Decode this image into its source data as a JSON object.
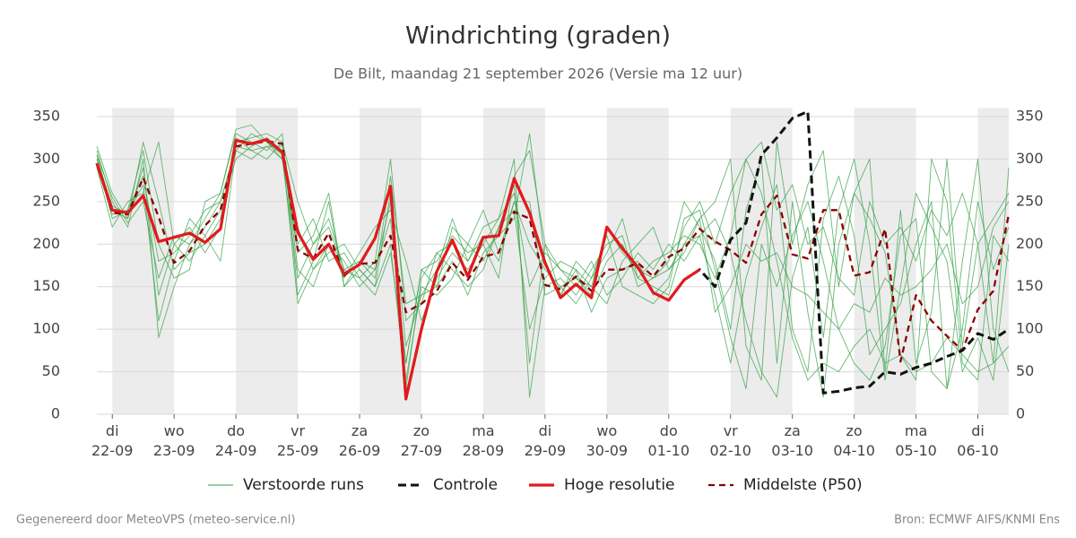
{
  "chart_data": {
    "type": "ensemble-line",
    "title": "Windrichting (graden)",
    "subtitle": "De Bilt, maandag 21 september 2026 (Versie ma 12 uur)",
    "footer_left": "Gegenereerd door MeteoVPS (meteo-service.nl)",
    "footer_right": "Bron: ECMWF AIFS/KNMI Ens",
    "x": [
      "2026-09-21T18:00",
      "2026-09-22T00:00",
      "2026-09-22T06:00",
      "2026-09-22T12:00",
      "2026-09-22T18:00",
      "2026-09-23T00:00",
      "2026-09-23T06:00",
      "2026-09-23T12:00",
      "2026-09-23T18:00",
      "2026-09-24T00:00",
      "2026-09-24T06:00",
      "2026-09-24T12:00",
      "2026-09-24T18:00",
      "2026-09-25T00:00",
      "2026-09-25T06:00",
      "2026-09-25T12:00",
      "2026-09-25T18:00",
      "2026-09-26T00:00",
      "2026-09-26T06:00",
      "2026-09-26T12:00",
      "2026-09-26T18:00",
      "2026-09-27T00:00",
      "2026-09-27T06:00",
      "2026-09-27T12:00",
      "2026-09-27T18:00",
      "2026-09-28T00:00",
      "2026-09-28T06:00",
      "2026-09-28T12:00",
      "2026-09-28T18:00",
      "2026-09-29T00:00",
      "2026-09-29T06:00",
      "2026-09-29T12:00",
      "2026-09-29T18:00",
      "2026-09-30T00:00",
      "2026-09-30T06:00",
      "2026-09-30T12:00",
      "2026-09-30T18:00",
      "2026-10-01T00:00",
      "2026-10-01T06:00",
      "2026-10-01T12:00",
      "2026-10-01T18:00",
      "2026-10-02T00:00",
      "2026-10-02T06:00",
      "2026-10-02T12:00",
      "2026-10-02T18:00",
      "2026-10-03T00:00",
      "2026-10-03T06:00",
      "2026-10-03T12:00",
      "2026-10-03T18:00",
      "2026-10-04T00:00",
      "2026-10-04T06:00",
      "2026-10-04T12:00",
      "2026-10-04T18:00",
      "2026-10-05T00:00",
      "2026-10-05T06:00",
      "2026-10-05T12:00",
      "2026-10-05T18:00",
      "2026-10-06T00:00",
      "2026-10-06T06:00",
      "2026-10-06T12:00"
    ],
    "xlim": [
      "2026-09-21T18:00",
      "2026-10-06T12:00"
    ],
    "xticks": [
      {
        "value": "2026-09-22T00:00",
        "label": "di\n22-09"
      },
      {
        "value": "2026-09-23T00:00",
        "label": "wo\n23-09"
      },
      {
        "value": "2026-09-24T00:00",
        "label": "do\n24-09"
      },
      {
        "value": "2026-09-25T00:00",
        "label": "vr\n25-09"
      },
      {
        "value": "2026-09-26T00:00",
        "label": "za\n26-09"
      },
      {
        "value": "2026-09-27T00:00",
        "label": "zo\n27-09"
      },
      {
        "value": "2026-09-28T00:00",
        "label": "ma\n28-09"
      },
      {
        "value": "2026-09-29T00:00",
        "label": "di\n29-09"
      },
      {
        "value": "2026-09-30T00:00",
        "label": "wo\n30-09"
      },
      {
        "value": "2026-10-01T00:00",
        "label": "do\n01-10"
      },
      {
        "value": "2026-10-02T00:00",
        "label": "vr\n02-10"
      },
      {
        "value": "2026-10-03T00:00",
        "label": "za\n03-10"
      },
      {
        "value": "2026-10-04T00:00",
        "label": "zo\n04-10"
      },
      {
        "value": "2026-10-05T00:00",
        "label": "ma\n05-10"
      },
      {
        "value": "2026-10-06T00:00",
        "label": "di\n06-10"
      }
    ],
    "ylim": [
      0,
      360
    ],
    "yticks": [
      0,
      50,
      100,
      150,
      200,
      250,
      300,
      350
    ],
    "grid": true,
    "legend": "bottom",
    "series": [
      {
        "name": "Verstoorde runs",
        "color": "#34a046",
        "style": "ensemble",
        "values": [
          [
            310,
            250,
            220,
            300,
            90,
            150,
            200,
            230,
            260,
            330,
            320,
            310,
            330,
            140,
            180,
            250,
            150,
            170,
            150,
            200,
            30,
            160,
            190,
            200,
            180,
            220,
            230,
            300,
            20,
            150,
            160,
            140,
            170,
            200,
            210,
            150,
            160,
            180,
            250,
            220,
            180,
            100,
            240,
            300,
            60,
            250,
            120,
            20,
            200,
            260,
            300,
            50,
            240,
            60,
            120,
            300,
            80,
            200,
            60,
            290
          ],
          [
            300,
            230,
            240,
            280,
            180,
            190,
            210,
            240,
            250,
            310,
            330,
            320,
            300,
            200,
            230,
            180,
            190,
            160,
            140,
            190,
            60,
            170,
            150,
            220,
            200,
            240,
            190,
            250,
            200,
            170,
            150,
            130,
            160,
            210,
            150,
            140,
            130,
            150,
            230,
            240,
            170,
            90,
            30,
            200,
            150,
            210,
            250,
            180,
            100,
            60,
            40,
            80,
            210,
            230,
            50,
            30,
            100,
            250,
            170,
            220
          ],
          [
            305,
            240,
            230,
            320,
            250,
            170,
            190,
            200,
            230,
            325,
            310,
            300,
            320,
            250,
            200,
            230,
            170,
            180,
            160,
            280,
            130,
            140,
            150,
            180,
            140,
            190,
            210,
            230,
            330,
            180,
            140,
            170,
            150,
            130,
            180,
            200,
            220,
            170,
            200,
            230,
            250,
            300,
            80,
            40,
            320,
            200,
            270,
            310,
            150,
            260,
            230,
            190,
            70,
            40,
            300,
            250,
            60,
            40,
            210,
            180
          ],
          [
            290,
            220,
            250,
            260,
            320,
            200,
            180,
            210,
            240,
            300,
            315,
            325,
            310,
            130,
            170,
            200,
            160,
            190,
            220,
            240,
            180,
            110,
            160,
            190,
            170,
            200,
            160,
            280,
            310,
            200,
            170,
            150,
            180,
            140,
            160,
            190,
            170,
            200,
            180,
            210,
            140,
            60,
            160,
            220,
            270,
            100,
            50,
            230,
            280,
            210,
            70,
            100,
            130,
            200,
            250,
            30,
            180,
            300,
            100,
            50
          ],
          [
            315,
            260,
            230,
            290,
            140,
            200,
            220,
            190,
            220,
            320,
            325,
            330,
            320,
            170,
            150,
            200,
            180,
            150,
            170,
            230,
            60,
            170,
            180,
            210,
            190,
            200,
            230,
            260,
            150,
            190,
            170,
            160,
            140,
            180,
            200,
            160,
            150,
            140,
            200,
            210,
            230,
            190,
            110,
            50,
            20,
            160,
            220,
            90,
            240,
            300,
            200,
            40,
            150,
            260,
            220,
            180,
            50,
            90,
            40,
            200
          ],
          [
            300,
            245,
            235,
            270,
            110,
            180,
            230,
            210,
            180,
            310,
            300,
            315,
            300,
            160,
            200,
            220,
            170,
            160,
            180,
            300,
            110,
            130,
            190,
            170,
            150,
            170,
            220,
            240,
            100,
            160,
            180,
            170,
            120,
            160,
            170,
            180,
            140,
            160,
            220,
            250,
            200,
            260,
            300,
            260,
            180,
            90,
            40,
            60,
            50,
            80,
            100,
            60,
            70,
            50,
            60,
            90,
            70,
            50,
            60,
            80
          ],
          [
            295,
            235,
            240,
            310,
            200,
            160,
            170,
            250,
            260,
            335,
            340,
            320,
            305,
            190,
            210,
            260,
            150,
            180,
            170,
            250,
            40,
            150,
            140,
            160,
            200,
            180,
            220,
            270,
            60,
            200,
            140,
            180,
            160,
            190,
            230,
            160,
            180,
            190,
            210,
            200,
            160,
            210,
            300,
            320,
            240,
            270,
            200,
            220,
            160,
            140,
            250,
            200,
            220,
            180,
            240,
            210,
            260,
            200,
            230,
            260
          ],
          [
            305,
            255,
            225,
            250,
            160,
            210,
            200,
            220,
            250,
            315,
            310,
            315,
            315,
            220,
            170,
            190,
            200,
            170,
            150,
            260,
            80,
            140,
            170,
            230,
            180,
            210,
            180,
            250,
            250,
            140,
            150,
            160,
            150,
            220,
            190,
            170,
            160,
            170,
            190,
            230,
            120,
            150,
            200,
            180,
            190,
            150,
            140,
            120,
            100,
            130,
            120,
            160,
            140,
            150,
            170,
            200,
            130,
            150,
            220,
            250
          ]
        ]
      },
      {
        "name": "Controle",
        "color": "#111111",
        "style": "dashed",
        "values": [
          295,
          240,
          237,
          257,
          203,
          208,
          213,
          202,
          218,
          322,
          318,
          323,
          308,
          214,
          182,
          200,
          165,
          176,
          207,
          268,
          18,
          100,
          168,
          205,
          162,
          208,
          210,
          277,
          237,
          178,
          137,
          153,
          137,
          220,
          195,
          173,
          143,
          134,
          158,
          170,
          150,
          205,
          225,
          305,
          325,
          348,
          356,
          25,
          27,
          31,
          33,
          50,
          47,
          55,
          60,
          68,
          75,
          95,
          88,
          100
        ]
      },
      {
        "name": "Hoge resolutie",
        "color": "#e31a1c",
        "style": "solid",
        "values": [
          295,
          240,
          237,
          257,
          203,
          208,
          213,
          202,
          218,
          322,
          318,
          323,
          308,
          214,
          182,
          200,
          165,
          176,
          207,
          268,
          18,
          100,
          168,
          205,
          162,
          208,
          210,
          277,
          237,
          178,
          137,
          153,
          137,
          220,
          195,
          173,
          143,
          134,
          158,
          170,
          null,
          null,
          null,
          null,
          null,
          null,
          null,
          null,
          null,
          null,
          null,
          null,
          null,
          null,
          null,
          null,
          null,
          null,
          null,
          null
        ]
      },
      {
        "name": "Middelste (P50)",
        "color": "#8b0000",
        "style": "dashed-thin",
        "values": [
          295,
          237,
          235,
          278,
          232,
          178,
          192,
          222,
          240,
          315,
          318,
          321,
          318,
          193,
          183,
          213,
          163,
          177,
          178,
          210,
          120,
          130,
          145,
          178,
          158,
          185,
          190,
          238,
          230,
          152,
          147,
          162,
          145,
          170,
          170,
          178,
          162,
          185,
          195,
          218,
          203,
          193,
          178,
          235,
          257,
          188,
          183,
          240,
          240,
          163,
          167,
          218,
          62,
          140,
          110,
          92,
          75,
          123,
          145,
          235
        ]
      }
    ]
  }
}
